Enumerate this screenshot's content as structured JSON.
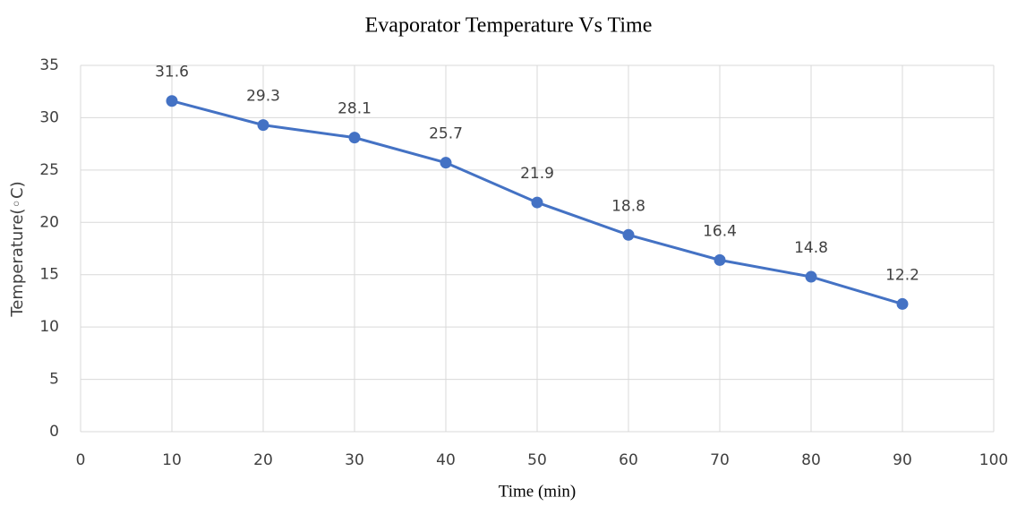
{
  "chart_data": {
    "type": "line",
    "title": "Evaporator Temperature Vs Time",
    "x_label": "Time (min)",
    "y_label": "Temperature(◦C)",
    "x": [
      10,
      20,
      30,
      40,
      50,
      60,
      70,
      80,
      90
    ],
    "values": [
      31.6,
      29.3,
      28.1,
      25.7,
      21.9,
      18.8,
      16.4,
      14.8,
      12.2
    ],
    "color": "#4472c4",
    "xlim": [
      0,
      100
    ],
    "xticks": [
      0,
      10,
      20,
      30,
      40,
      50,
      60,
      70,
      80,
      90,
      100
    ],
    "ylim": [
      0,
      35
    ],
    "yticks": [
      0,
      5,
      10,
      15,
      20,
      25,
      30,
      35
    ],
    "grid": true,
    "data_labels": true
  }
}
